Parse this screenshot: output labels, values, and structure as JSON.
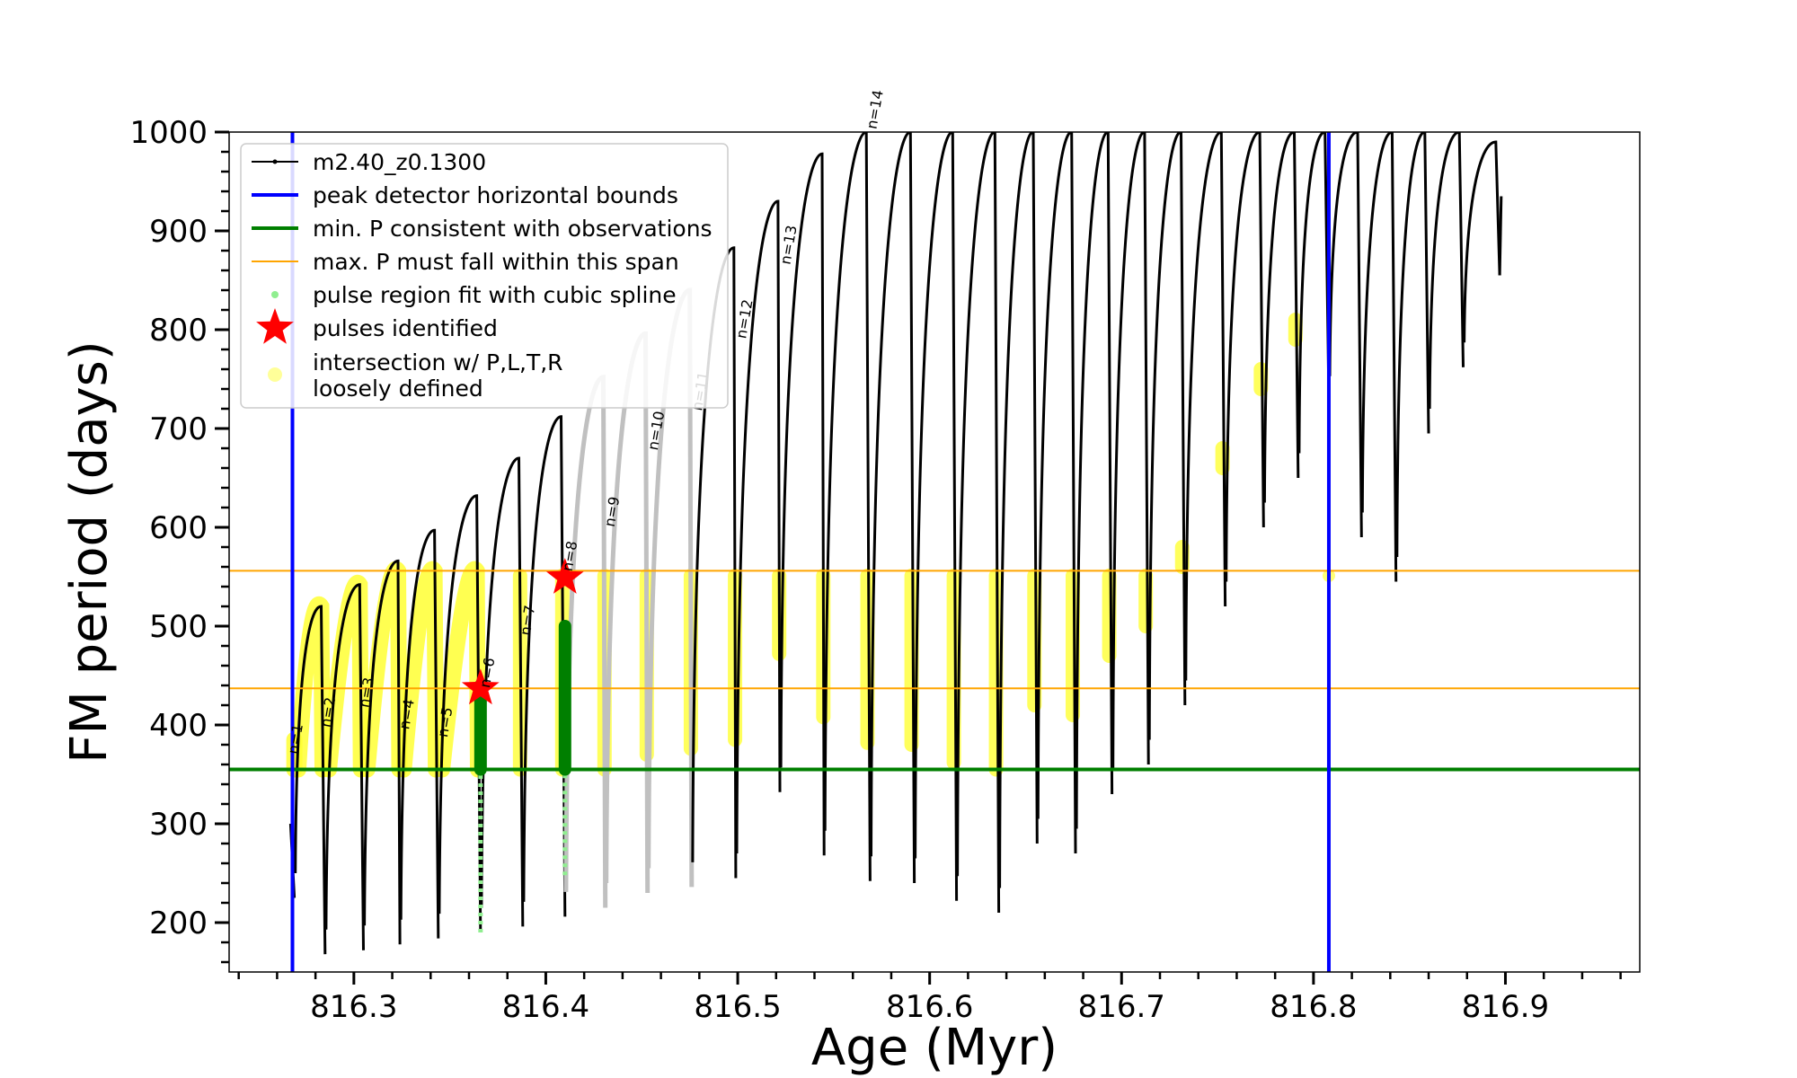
{
  "chart_data": {
    "type": "line",
    "title": "",
    "xlabel": "Age (Myr)",
    "ylabel": "FM period (days)",
    "xlim": [
      816.235,
      816.97
    ],
    "ylim": [
      150,
      1000
    ],
    "x_ticks": [
      816.3,
      816.4,
      816.5,
      816.6,
      816.7,
      816.8,
      816.9
    ],
    "x_tick_labels": [
      "816.3",
      "816.4",
      "816.5",
      "816.6",
      "816.7",
      "816.8",
      "816.9"
    ],
    "y_ticks": [
      200,
      300,
      400,
      500,
      600,
      700,
      800,
      900,
      1000
    ],
    "y_tick_labels": [
      "200",
      "300",
      "400",
      "500",
      "600",
      "700",
      "800",
      "900",
      "1000"
    ],
    "grid": false,
    "legend_position": "top-left",
    "legend": [
      {
        "label": "m2.40_z0.1300",
        "marker": "line-dot",
        "color": "#000000"
      },
      {
        "label": "peak detector horizontal bounds",
        "marker": "line",
        "color": "#0000ff"
      },
      {
        "label": "min. P consistent with observations",
        "marker": "line",
        "color": "#007f00"
      },
      {
        "label": "max. P must fall within this span",
        "marker": "thin-line",
        "color": "#ffa500"
      },
      {
        "label": "pulse region fit with cubic spline",
        "marker": "dot",
        "color": "#90ee90"
      },
      {
        "label": "pulses identified",
        "marker": "star",
        "color": "#ff0000"
      },
      {
        "label": "intersection w/ P,L,T,R\nloosely defined",
        "marker": "dot",
        "color": "#ffff99"
      }
    ],
    "vertical_lines": [
      {
        "name": "peak detector horizontal bounds",
        "x": 816.268,
        "color": "#0000ff"
      },
      {
        "name": "peak detector horizontal bounds",
        "x": 816.808,
        "color": "#0000ff"
      }
    ],
    "horizontal_lines": [
      {
        "name": "min. P consistent with observations",
        "y": 355,
        "color": "#007f00"
      },
      {
        "name": "max. P must fall within this span",
        "y": 437,
        "color": "#ffa500"
      },
      {
        "name": "max. P must fall within this span",
        "y": 556,
        "color": "#ffa500"
      }
    ],
    "pulse_minima": {
      "x": [
        816.269,
        816.285,
        816.305,
        816.324,
        816.344,
        816.366,
        816.388,
        816.41,
        816.431,
        816.453,
        816.476,
        816.499,
        816.522,
        816.545,
        816.569,
        816.592,
        816.614,
        816.636,
        816.656,
        816.676,
        816.695,
        816.714,
        816.733,
        816.754,
        816.774,
        816.792,
        816.808,
        816.825,
        816.843,
        816.86,
        816.878,
        816.897
      ],
      "y": [
        225,
        168,
        172,
        178,
        184,
        190,
        196,
        206,
        215,
        230,
        236,
        245,
        332,
        268,
        242,
        240,
        222,
        210,
        280,
        270,
        330,
        360,
        420,
        520,
        600,
        650,
        728,
        590,
        545,
        695,
        762,
        855
      ]
    },
    "pulse_peaks": {
      "x": [
        null,
        816.283,
        816.303,
        816.323,
        816.342,
        816.364,
        816.386,
        816.408,
        816.43,
        816.452,
        816.475,
        816.498,
        816.521,
        816.544,
        816.567,
        816.59,
        816.612,
        816.634,
        816.654,
        816.674,
        816.693,
        816.712,
        816.731,
        816.752,
        816.772,
        816.79,
        816.806,
        816.823,
        816.841,
        816.858,
        816.876,
        816.895
      ],
      "y": [
        null,
        520,
        542,
        566,
        597,
        632,
        670,
        712,
        752,
        796,
        840,
        883,
        930,
        978,
        1000,
        1000,
        1000,
        1000,
        1000,
        1000,
        1000,
        1000,
        1000,
        1000,
        1000,
        1000,
        1000,
        1000,
        1000,
        1000,
        1000,
        990
      ]
    },
    "pulse_labels": [
      {
        "text": "n=1",
        "x": 816.272,
        "y": 385
      },
      {
        "text": "n=2",
        "x": 816.289,
        "y": 412
      },
      {
        "text": "n=3",
        "x": 816.309,
        "y": 432
      },
      {
        "text": "n=4",
        "x": 816.33,
        "y": 410
      },
      {
        "text": "n=5",
        "x": 816.35,
        "y": 402
      },
      {
        "text": "n=6",
        "x": 816.372,
        "y": 452
      },
      {
        "text": "n=7",
        "x": 816.393,
        "y": 505
      },
      {
        "text": "n=8",
        "x": 816.415,
        "y": 570
      },
      {
        "text": "n=9",
        "x": 816.437,
        "y": 615
      },
      {
        "text": "n=10",
        "x": 816.46,
        "y": 697
      },
      {
        "text": "n=11",
        "x": 816.483,
        "y": 737
      },
      {
        "text": "n=12",
        "x": 816.506,
        "y": 810
      },
      {
        "text": "n=13",
        "x": 816.529,
        "y": 885
      },
      {
        "text": "n=14",
        "x": 816.574,
        "y": 1022
      }
    ],
    "pulses_identified": {
      "x": [
        816.366,
        816.41
      ],
      "y": [
        437,
        549
      ]
    },
    "spline_fit_regions": [
      {
        "x": 816.366,
        "y_range": [
          190,
          500
        ]
      },
      {
        "x": 816.41,
        "y_range": [
          248,
          560
        ]
      }
    ]
  }
}
